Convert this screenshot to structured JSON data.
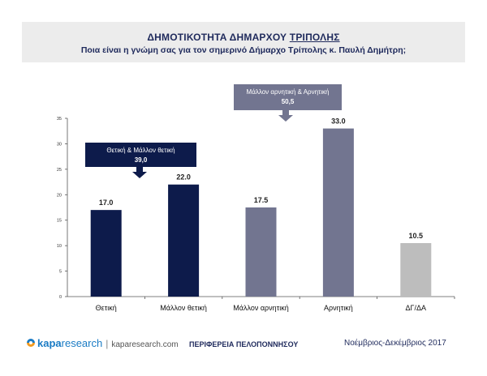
{
  "header": {
    "title_prefix": "ΔΗΜΟΤΙΚΟΤΗΤΑ ΔΗΜΑΡΧΟΥ ",
    "title_underlined": "ΤΡΙΠΟΛΗΣ",
    "subtitle": "Ποια είναι η γνώμη σας για τον σημερινό Δήμαρχο Τρίπολης κ. Παυλή Δημήτρη;"
  },
  "chart_data": {
    "type": "bar",
    "categories": [
      "Θετική",
      "Μάλλον θετική",
      "Μάλλον αρνητική",
      "Αρνητική",
      "ΔΓ/ΔΑ"
    ],
    "values": [
      17.0,
      22.0,
      17.5,
      33.0,
      10.5
    ],
    "value_labels": [
      "17.0",
      "22.0",
      "17.5",
      "33.0",
      "10.5"
    ],
    "bar_colors": [
      "#0d1b4b",
      "#0d1b4b",
      "#727590",
      "#727590",
      "#bdbdbd"
    ],
    "ylim": [
      0,
      35
    ],
    "yticks": [
      "0",
      "5",
      "10",
      "15",
      "20",
      "25",
      "30",
      "35"
    ],
    "grid": false,
    "annotations": [
      {
        "label": "Θετική & Μάλλον θετική",
        "value": "39,0",
        "color": "#0d1b4b"
      },
      {
        "label": "Μάλλον αρνητική & Αρνητική",
        "value": "50,5",
        "color": "#727590"
      }
    ]
  },
  "footer": {
    "brand_kapa": "kapa",
    "brand_research": "research",
    "separator": "|",
    "url": "kaparesearch.com",
    "region": "ΠΕΡΙΦΕΡΕΙΑ ΠΕΛΟΠΟΝΝΗΣΟΥ",
    "date": "Νοέμβριος-Δεκέμβριος 2017"
  }
}
